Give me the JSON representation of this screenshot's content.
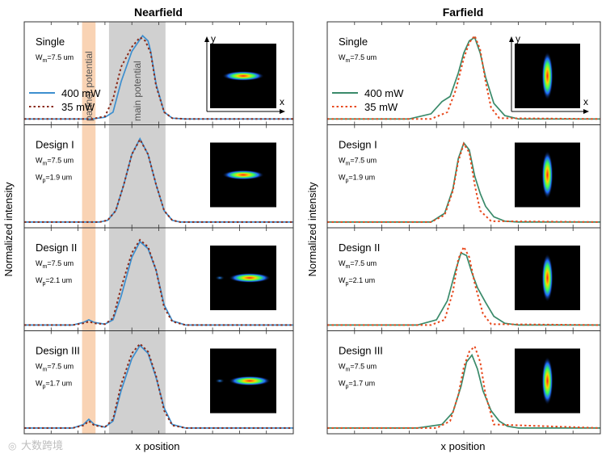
{
  "watermark": "大数跨境",
  "colors": {
    "nf_400": "#3d8fcf",
    "nf_35": "#8a2a1a",
    "ff_400": "#3a8a6a",
    "ff_35": "#e8481c",
    "partner_band": "#f9d3b4",
    "main_band": "#d0d0d0"
  },
  "chart_data": [
    {
      "type": "line",
      "title": "Nearfield",
      "xlabel": "x position",
      "ylabel": "Normalized intensity",
      "legend": [
        "400 mW",
        "35 mW"
      ],
      "bands": [
        {
          "label": "partner potential",
          "x_range": [
            0.215,
            0.265
          ],
          "color": "partner_band"
        },
        {
          "label": "main potential",
          "x_range": [
            0.315,
            0.525
          ],
          "color": "main_band"
        }
      ],
      "panels": [
        {
          "label": "Single",
          "params": [
            {
              "base": "W",
              "sub": "m",
              "rest": "=7.5 um"
            }
          ],
          "inset_axes": {
            "y": "y",
            "x": "x"
          },
          "series": [
            {
              "name": "400 mW",
              "x": [
                0,
                0.25,
                0.3,
                0.33,
                0.36,
                0.4,
                0.44,
                0.46,
                0.47,
                0.49,
                0.52,
                0.55,
                0.6,
                1
              ],
              "y": [
                0.02,
                0.02,
                0.04,
                0.1,
                0.45,
                0.8,
                0.98,
                0.92,
                0.8,
                0.42,
                0.1,
                0.03,
                0.02,
                0.02
              ]
            },
            {
              "name": "35 mW",
              "x": [
                0,
                0.25,
                0.3,
                0.33,
                0.36,
                0.4,
                0.43,
                0.45,
                0.47,
                0.49,
                0.52,
                0.55,
                0.6,
                1
              ],
              "y": [
                0.02,
                0.02,
                0.05,
                0.25,
                0.62,
                0.85,
                0.96,
                0.92,
                0.78,
                0.4,
                0.1,
                0.03,
                0.02,
                0.02
              ]
            }
          ]
        },
        {
          "label": "Design I",
          "params": [
            {
              "base": "W",
              "sub": "m",
              "rest": "=7.5 um"
            },
            {
              "base": "W",
              "sub": "p",
              "rest": "=1.9 um"
            }
          ],
          "series": [
            {
              "name": "400 mW",
              "x": [
                0,
                0.28,
                0.31,
                0.34,
                0.37,
                0.4,
                0.43,
                0.46,
                0.49,
                0.52,
                0.55,
                0.58,
                1
              ],
              "y": [
                0.02,
                0.02,
                0.04,
                0.15,
                0.45,
                0.8,
                0.98,
                0.8,
                0.45,
                0.15,
                0.04,
                0.02,
                0.02
              ]
            },
            {
              "name": "35 mW",
              "x": [
                0,
                0.28,
                0.31,
                0.34,
                0.37,
                0.4,
                0.43,
                0.46,
                0.49,
                0.52,
                0.55,
                0.58,
                1
              ],
              "y": [
                0.02,
                0.02,
                0.04,
                0.15,
                0.45,
                0.8,
                0.97,
                0.8,
                0.45,
                0.15,
                0.04,
                0.02,
                0.02
              ]
            }
          ]
        },
        {
          "label": "Design II",
          "params": [
            {
              "base": "W",
              "sub": "m",
              "rest": "=7.5 um"
            },
            {
              "base": "W",
              "sub": "p",
              "rest": "=2.1 um"
            }
          ],
          "series": [
            {
              "name": "400 mW",
              "x": [
                0,
                0.18,
                0.22,
                0.24,
                0.26,
                0.3,
                0.33,
                0.36,
                0.4,
                0.43,
                0.46,
                0.49,
                0.52,
                0.55,
                0.6,
                1
              ],
              "y": [
                0.02,
                0.02,
                0.05,
                0.08,
                0.05,
                0.03,
                0.08,
                0.35,
                0.8,
                0.98,
                0.9,
                0.65,
                0.25,
                0.07,
                0.02,
                0.02
              ]
            },
            {
              "name": "35 mW",
              "x": [
                0,
                0.18,
                0.22,
                0.24,
                0.26,
                0.3,
                0.33,
                0.36,
                0.4,
                0.43,
                0.46,
                0.49,
                0.52,
                0.55,
                0.6,
                1
              ],
              "y": [
                0.02,
                0.02,
                0.04,
                0.06,
                0.04,
                0.03,
                0.1,
                0.45,
                0.85,
                1.0,
                0.92,
                0.65,
                0.22,
                0.06,
                0.02,
                0.02
              ]
            }
          ]
        },
        {
          "label": "Design III",
          "params": [
            {
              "base": "W",
              "sub": "m",
              "rest": "=7.5 um"
            },
            {
              "base": "W",
              "sub": "p",
              "rest": "=1.7 um"
            }
          ],
          "series": [
            {
              "name": "400 mW",
              "x": [
                0,
                0.18,
                0.22,
                0.24,
                0.26,
                0.3,
                0.33,
                0.36,
                0.4,
                0.43,
                0.46,
                0.49,
                0.52,
                0.55,
                0.6,
                1
              ],
              "y": [
                0.02,
                0.02,
                0.06,
                0.12,
                0.06,
                0.03,
                0.1,
                0.45,
                0.82,
                0.97,
                0.88,
                0.6,
                0.25,
                0.06,
                0.02,
                0.02
              ]
            },
            {
              "name": "35 mW",
              "x": [
                0,
                0.18,
                0.22,
                0.24,
                0.26,
                0.3,
                0.33,
                0.36,
                0.4,
                0.43,
                0.46,
                0.49,
                0.52,
                0.55,
                0.6,
                1
              ],
              "y": [
                0.02,
                0.02,
                0.05,
                0.1,
                0.05,
                0.03,
                0.12,
                0.52,
                0.88,
                0.99,
                0.9,
                0.62,
                0.22,
                0.05,
                0.02,
                0.02
              ]
            }
          ]
        }
      ]
    },
    {
      "type": "line",
      "title": "Farfield",
      "xlabel": "x position",
      "ylabel": "Normalized intensity",
      "legend": [
        "400 mW",
        "35 mW"
      ],
      "panels": [
        {
          "label": "Single",
          "params": [
            {
              "base": "W",
              "sub": "m",
              "rest": "=7.5 um"
            }
          ],
          "inset_axes": {
            "y": "y",
            "x": "x"
          },
          "series": [
            {
              "name": "400 mW",
              "x": [
                0,
                0.3,
                0.38,
                0.42,
                0.45,
                0.48,
                0.5,
                0.52,
                0.54,
                0.56,
                0.58,
                0.61,
                0.65,
                0.7,
                1
              ],
              "y": [
                0.02,
                0.02,
                0.08,
                0.22,
                0.28,
                0.55,
                0.78,
                0.92,
                0.96,
                0.78,
                0.5,
                0.2,
                0.06,
                0.02,
                0.02
              ]
            },
            {
              "name": "35 mW",
              "x": [
                0,
                0.38,
                0.44,
                0.47,
                0.5,
                0.52,
                0.54,
                0.56,
                0.58,
                0.6,
                0.63,
                1
              ],
              "y": [
                0.02,
                0.02,
                0.1,
                0.35,
                0.72,
                0.9,
                0.98,
                0.82,
                0.45,
                0.15,
                0.03,
                0.02
              ]
            }
          ]
        },
        {
          "label": "Design I",
          "params": [
            {
              "base": "W",
              "sub": "m",
              "rest": "=7.5 um"
            },
            {
              "base": "W",
              "sub": "p",
              "rest": "=1.9 um"
            }
          ],
          "series": [
            {
              "name": "400 mW",
              "x": [
                0,
                0.38,
                0.43,
                0.46,
                0.48,
                0.5,
                0.52,
                0.54,
                0.56,
                0.58,
                0.61,
                0.65,
                0.7,
                1
              ],
              "y": [
                0.02,
                0.02,
                0.12,
                0.4,
                0.75,
                0.93,
                0.85,
                0.55,
                0.35,
                0.2,
                0.08,
                0.03,
                0.02,
                0.02
              ]
            },
            {
              "name": "35 mW",
              "x": [
                0,
                0.38,
                0.43,
                0.46,
                0.48,
                0.5,
                0.52,
                0.54,
                0.56,
                0.6,
                1
              ],
              "y": [
                0.02,
                0.02,
                0.1,
                0.38,
                0.72,
                0.92,
                0.82,
                0.45,
                0.15,
                0.03,
                0.02
              ]
            }
          ]
        },
        {
          "label": "Design II",
          "params": [
            {
              "base": "W",
              "sub": "m",
              "rest": "=7.5 um"
            },
            {
              "base": "W",
              "sub": "p",
              "rest": "=2.1 um"
            }
          ],
          "series": [
            {
              "name": "400 mW",
              "x": [
                0,
                0.33,
                0.4,
                0.44,
                0.47,
                0.49,
                0.51,
                0.53,
                0.55,
                0.58,
                0.61,
                0.65,
                0.7,
                1
              ],
              "y": [
                0.02,
                0.02,
                0.08,
                0.3,
                0.65,
                0.85,
                0.82,
                0.62,
                0.45,
                0.28,
                0.12,
                0.04,
                0.02,
                0.02
              ]
            },
            {
              "name": "35 mW",
              "x": [
                0,
                0.38,
                0.43,
                0.46,
                0.48,
                0.5,
                0.52,
                0.54,
                0.57,
                0.6,
                1
              ],
              "y": [
                0.02,
                0.02,
                0.08,
                0.4,
                0.78,
                0.92,
                0.8,
                0.5,
                0.15,
                0.03,
                0.02
              ]
            }
          ]
        },
        {
          "label": "Design III",
          "params": [
            {
              "base": "W",
              "sub": "m",
              "rest": "=7.5 um"
            },
            {
              "base": "W",
              "sub": "p",
              "rest": "=1.7 um"
            }
          ],
          "series": [
            {
              "name": "400 mW",
              "x": [
                0,
                0.33,
                0.42,
                0.46,
                0.49,
                0.51,
                0.53,
                0.55,
                0.57,
                0.6,
                0.63,
                0.66,
                0.7,
                1
              ],
              "y": [
                0.02,
                0.02,
                0.06,
                0.2,
                0.5,
                0.78,
                0.86,
                0.7,
                0.45,
                0.22,
                0.1,
                0.04,
                0.02,
                0.02
              ]
            },
            {
              "name": "35 mW",
              "x": [
                0,
                0.4,
                0.45,
                0.48,
                0.5,
                0.52,
                0.54,
                0.56,
                0.58,
                0.61,
                1
              ],
              "y": [
                0.02,
                0.02,
                0.1,
                0.4,
                0.72,
                0.9,
                0.96,
                0.78,
                0.4,
                0.06,
                0.02
              ]
            }
          ]
        }
      ]
    }
  ]
}
